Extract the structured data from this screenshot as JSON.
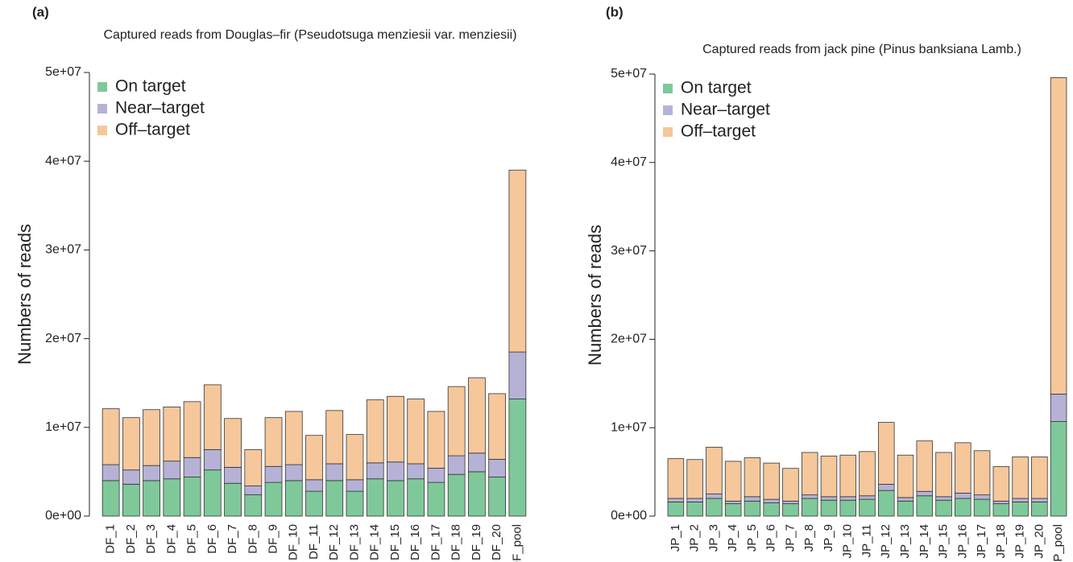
{
  "chart_data": [
    {
      "type": "stacked-bar",
      "panel": "(a)",
      "title": "Captured reads from Douglas–fir (Pseudotsuga menziesii var. menziesii)",
      "y_label": "Numbers of reads",
      "categories": [
        "DF_1",
        "DF_2",
        "DF_3",
        "DF_4",
        "DF_5",
        "DF_6",
        "DF_7",
        "DF_8",
        "DF_9",
        "DF_10",
        "DF_11",
        "DF_12",
        "DF_13",
        "DF_14",
        "DF_15",
        "DF_16",
        "DF_17",
        "DF_18",
        "DF_19",
        "DF_20",
        "DF_pool"
      ],
      "series": [
        {
          "name": "On target",
          "color": "#7fc89a",
          "values": [
            4000000,
            3600000,
            4000000,
            4200000,
            4400000,
            5200000,
            3700000,
            2400000,
            3800000,
            4000000,
            2800000,
            4000000,
            2800000,
            4200000,
            4000000,
            4200000,
            3800000,
            4700000,
            5000000,
            4400000,
            13200000
          ]
        },
        {
          "name": "Near–target",
          "color": "#b6b2d6",
          "values": [
            1800000,
            1600000,
            1700000,
            2000000,
            2200000,
            2300000,
            1800000,
            1000000,
            1800000,
            1800000,
            1300000,
            1900000,
            1300000,
            1800000,
            2100000,
            1700000,
            1600000,
            2100000,
            2100000,
            2000000,
            5300000
          ]
        },
        {
          "name": "Off–target",
          "color": "#f5c79b",
          "values": [
            6300000,
            5900000,
            6300000,
            6100000,
            6300000,
            7300000,
            5500000,
            4100000,
            5500000,
            6000000,
            5000000,
            6000000,
            5100000,
            7100000,
            7400000,
            7300000,
            6400000,
            7800000,
            8500000,
            7400000,
            20500000
          ]
        }
      ],
      "ylim": [
        0,
        50000000
      ],
      "yticks": [
        {
          "value": 0,
          "label": "0e+00"
        },
        {
          "value": 10000000,
          "label": "1e+07"
        },
        {
          "value": 20000000,
          "label": "2e+07"
        },
        {
          "value": 30000000,
          "label": "3e+07"
        },
        {
          "value": 40000000,
          "label": "4e+07"
        },
        {
          "value": 50000000,
          "label": "5e+07"
        }
      ],
      "legend": "top-left"
    },
    {
      "type": "stacked-bar",
      "panel": "(b)",
      "title": "Captured reads from jack pine (Pinus banksiana Lamb.)",
      "y_label": "Numbers of reads",
      "categories": [
        "JP_1",
        "JP_2",
        "JP_3",
        "JP_4",
        "JP_5",
        "JP_6",
        "JP_7",
        "JP_8",
        "JP_9",
        "JP_10",
        "JP_11",
        "JP_12",
        "JP_13",
        "JP_14",
        "JP_15",
        "JP_16",
        "JP_17",
        "JP_18",
        "JP_19",
        "JP_20",
        "JP_pool"
      ],
      "series": [
        {
          "name": "On target",
          "color": "#7fc89a",
          "values": [
            1600000,
            1600000,
            2000000,
            1400000,
            1700000,
            1500000,
            1400000,
            2000000,
            1800000,
            1800000,
            1900000,
            2900000,
            1700000,
            2300000,
            1800000,
            2000000,
            1900000,
            1400000,
            1600000,
            1600000,
            10700000
          ]
        },
        {
          "name": "Near–target",
          "color": "#b6b2d6",
          "values": [
            400000,
            400000,
            500000,
            300000,
            500000,
            400000,
            300000,
            400000,
            400000,
            400000,
            400000,
            700000,
            400000,
            500000,
            400000,
            600000,
            500000,
            300000,
            400000,
            400000,
            3100000
          ]
        },
        {
          "name": "Off–target",
          "color": "#f5c79b",
          "values": [
            4500000,
            4400000,
            5300000,
            4500000,
            4400000,
            4100000,
            3700000,
            4800000,
            4600000,
            4700000,
            5000000,
            7000000,
            4800000,
            5700000,
            5000000,
            5700000,
            5000000,
            3900000,
            4700000,
            4700000,
            35800000
          ]
        }
      ],
      "ylim": [
        0,
        50000000
      ],
      "yticks": [
        {
          "value": 0,
          "label": "0e+00"
        },
        {
          "value": 10000000,
          "label": "1e+07"
        },
        {
          "value": 20000000,
          "label": "2e+07"
        },
        {
          "value": 30000000,
          "label": "3e+07"
        },
        {
          "value": 40000000,
          "label": "4e+07"
        },
        {
          "value": 50000000,
          "label": "5e+07"
        }
      ],
      "legend": "top-left"
    }
  ]
}
